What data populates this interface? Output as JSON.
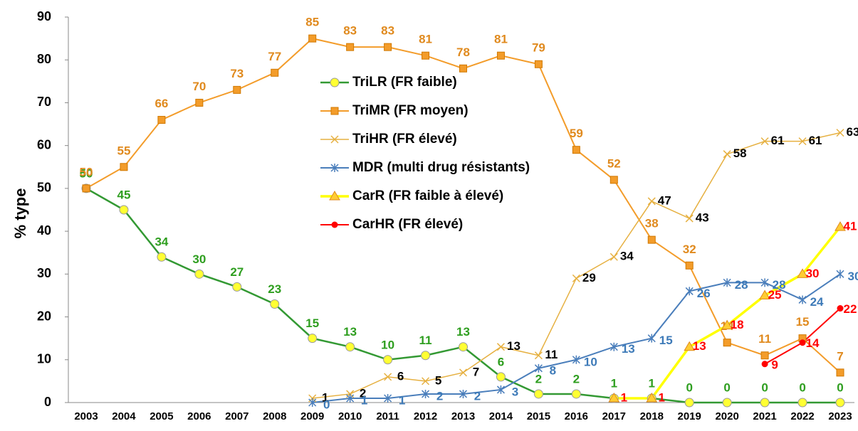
{
  "chart_data": {
    "type": "line",
    "y_label": "% type",
    "categories": [
      "2003",
      "2004",
      "2005",
      "2006",
      "2007",
      "2008",
      "2009",
      "2010",
      "2011",
      "2012",
      "2013",
      "2014",
      "2015",
      "2016",
      "2017",
      "2018",
      "2019",
      "2020",
      "2021",
      "2022",
      "2023"
    ],
    "ylim": [
      0,
      90
    ],
    "yticks": [
      0,
      10,
      20,
      30,
      40,
      50,
      60,
      70,
      80,
      90
    ],
    "grid": false,
    "series": [
      {
        "name": "TriLR (FR faible)",
        "color": "#339933",
        "marker": "circle",
        "marker_color": "#ffff33",
        "label_color": "#2e9e1f",
        "values": [
          50,
          45,
          34,
          30,
          27,
          23,
          15,
          13,
          10,
          11,
          13,
          6,
          2,
          2,
          1,
          1,
          0,
          0,
          0,
          0,
          0
        ]
      },
      {
        "name": "TriMR (FR moyen)",
        "color": "#f39c2a",
        "marker": "square",
        "marker_color": "#f39c2a",
        "label_color": "#e08a1e",
        "values": [
          50,
          55,
          66,
          70,
          73,
          77,
          85,
          83,
          83,
          81,
          78,
          81,
          79,
          59,
          52,
          38,
          32,
          14,
          11,
          15,
          7
        ]
      },
      {
        "name": "TriHR (FR élevé)",
        "color": "#e6b040",
        "marker": "x",
        "marker_color": "#e6b040",
        "label_color": "#000000",
        "values": [
          null,
          null,
          null,
          null,
          null,
          null,
          1,
          2,
          6,
          5,
          7,
          13,
          11,
          29,
          34,
          47,
          43,
          58,
          61,
          61,
          63
        ]
      },
      {
        "name": "MDR (multi drug résistants)",
        "color": "#4a7ebb",
        "marker": "star",
        "marker_color": "#4a7ebb",
        "label_color": "#3d7ab8",
        "values": [
          null,
          null,
          null,
          null,
          null,
          null,
          0,
          1,
          1,
          2,
          2,
          3,
          8,
          10,
          13,
          15,
          26,
          28,
          28,
          24,
          30
        ]
      },
      {
        "name": "CarR (FR faible à élevé)",
        "color": "#ffff00",
        "marker": "triangle",
        "marker_color": "#ffcc33",
        "label_color": "#ff0000",
        "values": [
          null,
          null,
          null,
          null,
          null,
          null,
          null,
          null,
          null,
          null,
          null,
          null,
          null,
          null,
          1,
          1,
          13,
          18,
          25,
          30,
          41
        ]
      },
      {
        "name": "CarHR (FR élevé)",
        "color": "#ff0000",
        "marker": "dot",
        "marker_color": "#ff0000",
        "label_color": "#ff0000",
        "values": [
          null,
          null,
          null,
          null,
          null,
          null,
          null,
          null,
          null,
          null,
          null,
          null,
          null,
          null,
          null,
          null,
          null,
          null,
          9,
          14,
          22
        ]
      }
    ]
  }
}
